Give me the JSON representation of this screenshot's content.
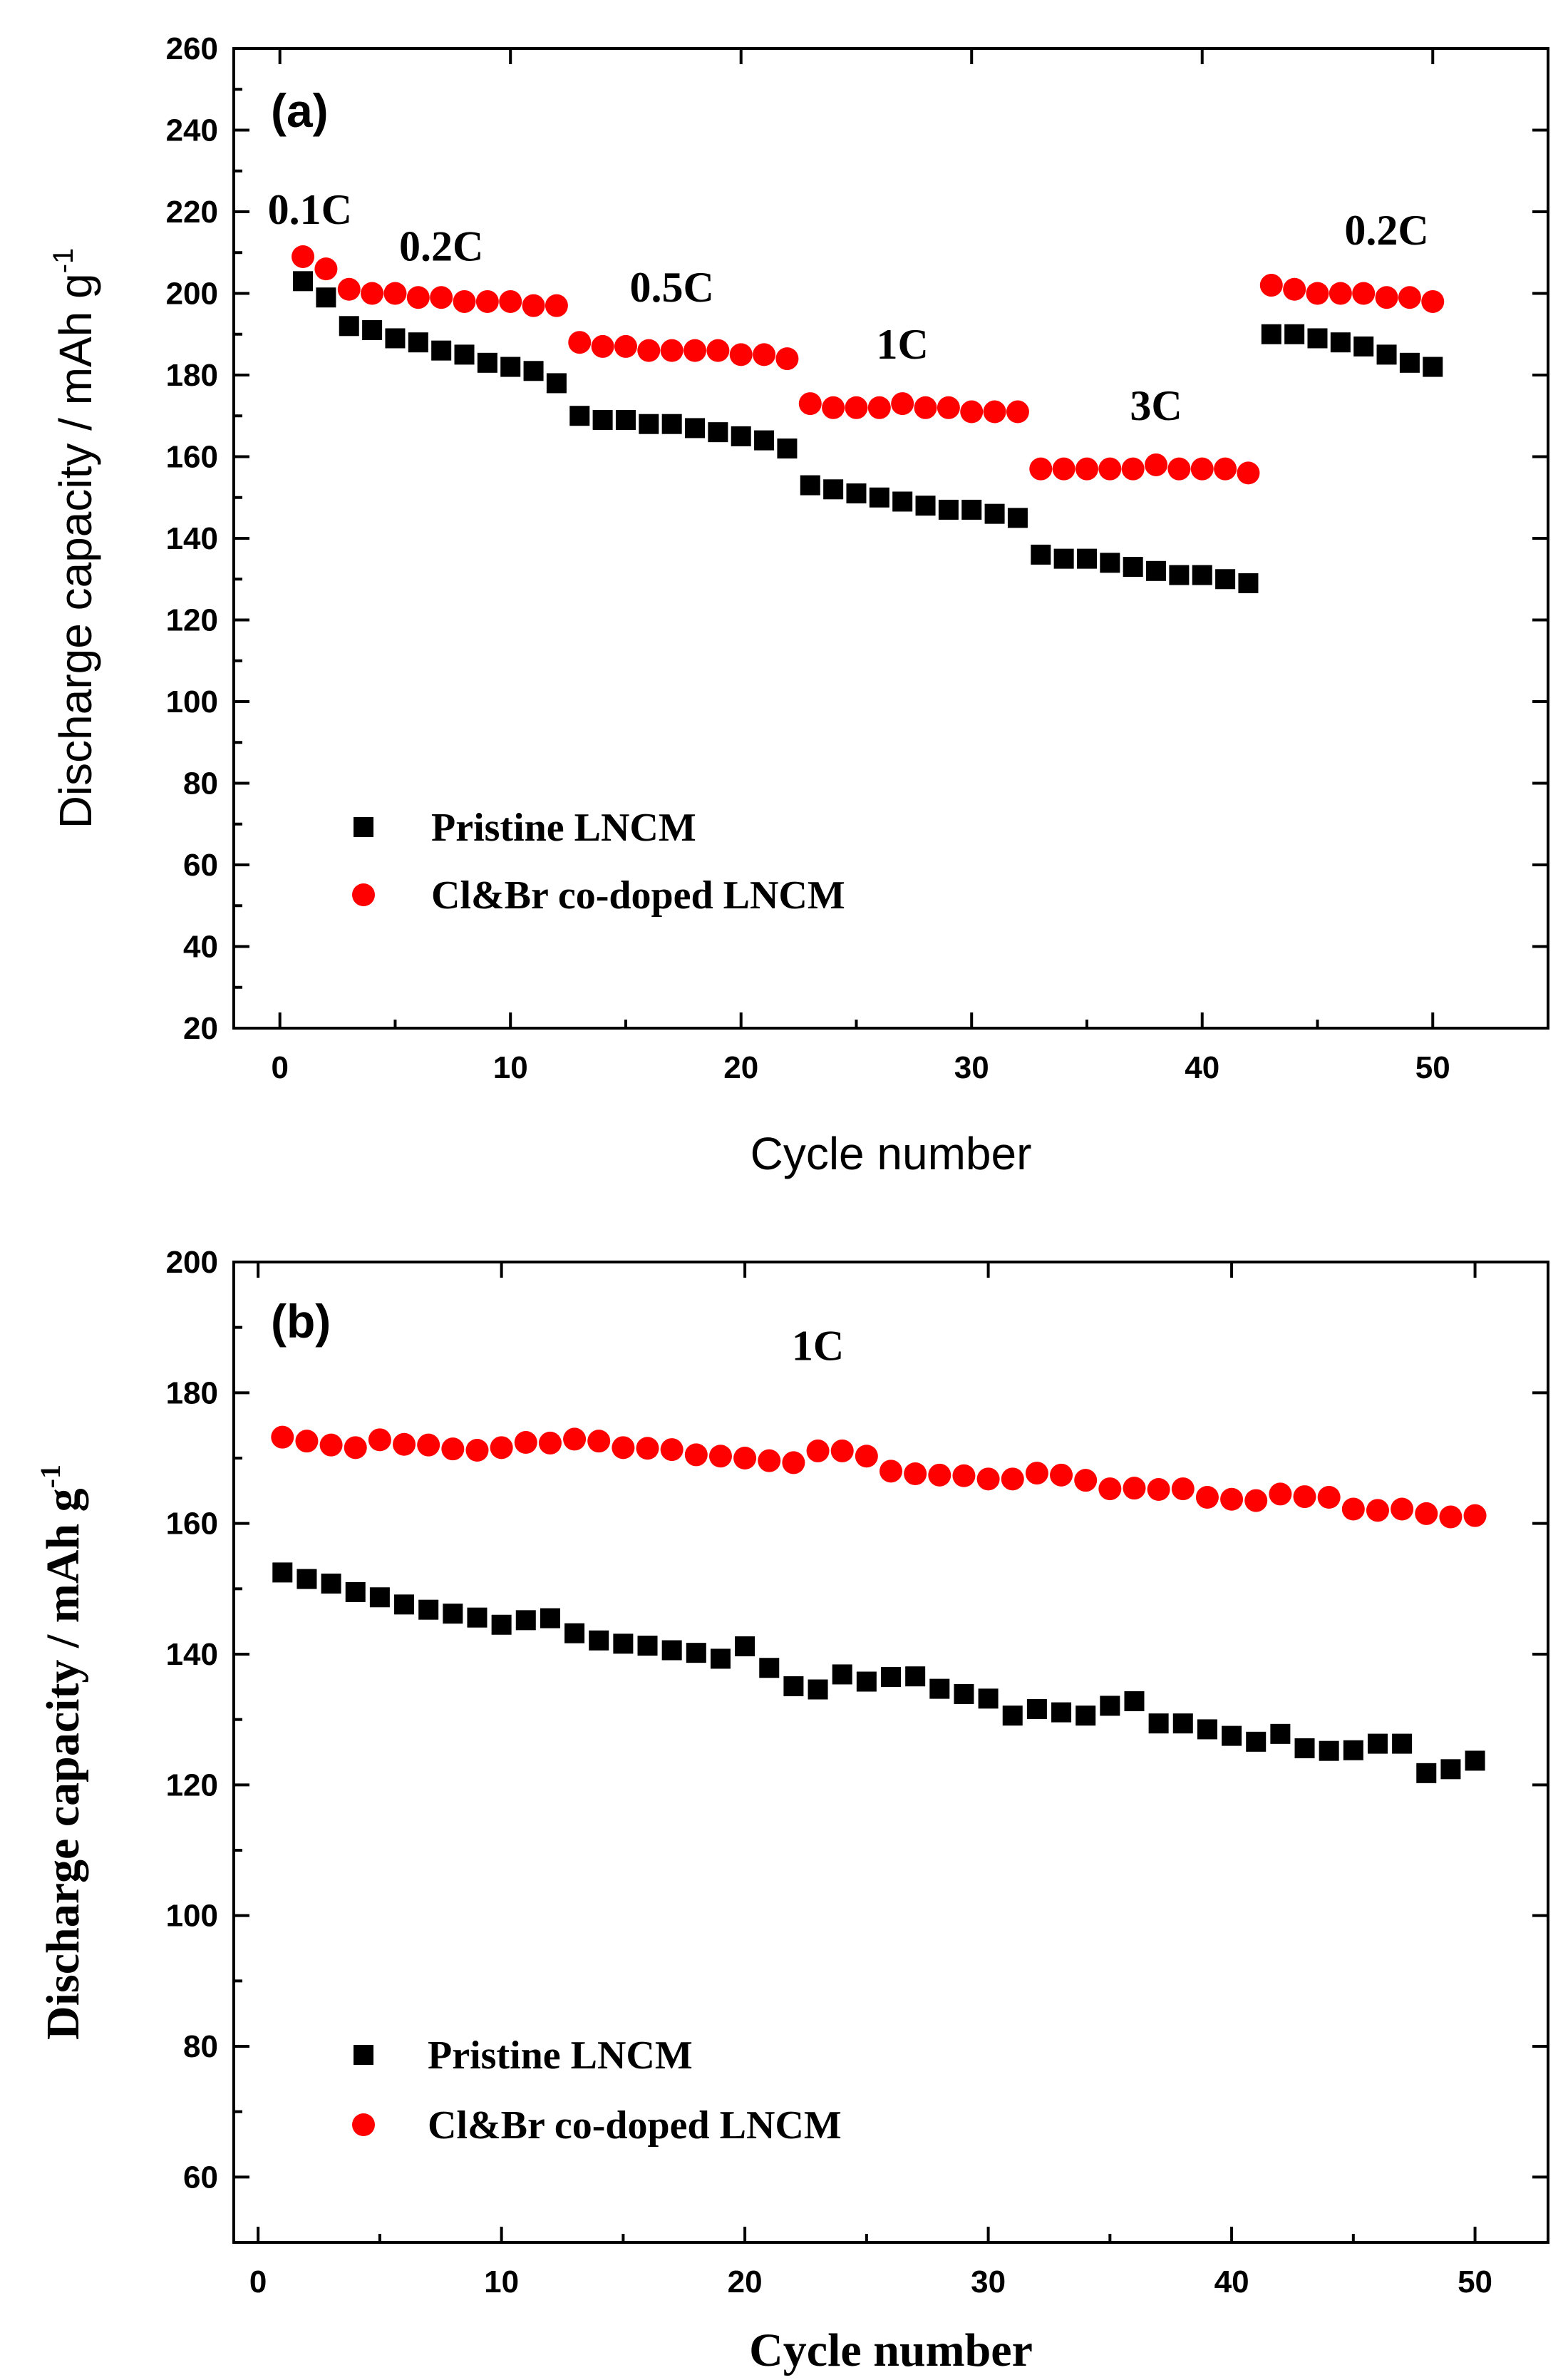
{
  "chart_data": [
    {
      "panel": "(a)",
      "type": "scatter",
      "xlabel": "Cycle  number",
      "ylabel": "Discharge capacity / mAh g-1",
      "ylabel_main": "Discharge capacity / mAh g",
      "ylabel_sup": "-1",
      "xlim": [
        -2,
        55
      ],
      "ylim": [
        20,
        260
      ],
      "xticks": [
        0,
        10,
        20,
        30,
        40,
        50
      ],
      "yticks": [
        20,
        40,
        60,
        80,
        100,
        120,
        140,
        160,
        180,
        200,
        220,
        240,
        260
      ],
      "annotations": [
        {
          "text": "0.1C",
          "x": 1.3,
          "y": 217
        },
        {
          "text": "0.2C",
          "x": 7,
          "y": 208
        },
        {
          "text": "0.5C",
          "x": 17,
          "y": 198
        },
        {
          "text": "1C",
          "x": 27,
          "y": 184
        },
        {
          "text": "3C",
          "x": 38,
          "y": 169
        },
        {
          "text": "0.2C",
          "x": 48,
          "y": 212
        }
      ],
      "series": [
        {
          "name": "Pristine LNCM",
          "marker": "square",
          "color": "#000000",
          "x": [
            1,
            2,
            3,
            4,
            5,
            6,
            7,
            8,
            9,
            10,
            11,
            12,
            13,
            14,
            15,
            16,
            17,
            18,
            19,
            20,
            21,
            22,
            23,
            24,
            25,
            26,
            27,
            28,
            29,
            30,
            31,
            32,
            33,
            34,
            35,
            36,
            37,
            38,
            39,
            40,
            41,
            42,
            43,
            44,
            45,
            46,
            47,
            48,
            49,
            50
          ],
          "y": [
            203,
            199,
            192,
            191,
            189,
            188,
            186,
            185,
            183,
            182,
            181,
            178,
            170,
            169,
            169,
            168,
            168,
            167,
            166,
            165,
            164,
            162,
            153,
            152,
            151,
            150,
            149,
            148,
            147,
            147,
            146,
            145,
            136,
            135,
            135,
            134,
            133,
            132,
            131,
            131,
            130,
            129,
            190,
            190,
            189,
            188,
            187,
            185,
            183,
            182
          ]
        },
        {
          "name": "Cl&Br co-doped LNCM",
          "marker": "circle",
          "color": "#ff0000",
          "x": [
            1,
            2,
            3,
            4,
            5,
            6,
            7,
            8,
            9,
            10,
            11,
            12,
            13,
            14,
            15,
            16,
            17,
            18,
            19,
            20,
            21,
            22,
            23,
            24,
            25,
            26,
            27,
            28,
            29,
            30,
            31,
            32,
            33,
            34,
            35,
            36,
            37,
            38,
            39,
            40,
            41,
            42,
            43,
            44,
            45,
            46,
            47,
            48,
            49,
            50
          ],
          "y": [
            209,
            206,
            201,
            200,
            200,
            199,
            199,
            198,
            198,
            198,
            197,
            197,
            188,
            187,
            187,
            186,
            186,
            186,
            186,
            185,
            185,
            184,
            173,
            172,
            172,
            172,
            173,
            172,
            172,
            171,
            171,
            171,
            157,
            157,
            157,
            157,
            157,
            158,
            157,
            157,
            157,
            156,
            202,
            201,
            200,
            200,
            200,
            199,
            199,
            198
          ]
        }
      ]
    },
    {
      "panel": "(b)",
      "type": "scatter",
      "xlabel": "Cycle  number",
      "ylabel": "Discharge capacity / mAh g-1",
      "ylabel_main": "Discharge capacity / mAh g",
      "ylabel_sup": "-1",
      "xlim": [
        -1,
        53
      ],
      "ylim": [
        50,
        200
      ],
      "xticks": [
        0,
        10,
        20,
        30,
        40,
        50
      ],
      "yticks": [
        60,
        80,
        100,
        120,
        140,
        160,
        180,
        200
      ],
      "annotations": [
        {
          "text": "1C",
          "x": 23,
          "y": 185
        }
      ],
      "series": [
        {
          "name": "Pristine LNCM",
          "marker": "square",
          "color": "#000000",
          "x": [
            1,
            2,
            3,
            4,
            5,
            6,
            7,
            8,
            9,
            10,
            11,
            12,
            13,
            14,
            15,
            16,
            17,
            18,
            19,
            20,
            21,
            22,
            23,
            24,
            25,
            26,
            27,
            28,
            29,
            30,
            31,
            32,
            33,
            34,
            35,
            36,
            37,
            38,
            39,
            40,
            41,
            42,
            43,
            44,
            45,
            46,
            47,
            48,
            49,
            50
          ],
          "y": [
            152.5,
            151.5,
            150.8,
            149.5,
            148.7,
            147.6,
            146.8,
            146.2,
            145.6,
            144.5,
            145.2,
            145.5,
            143.2,
            142.1,
            141.6,
            141.3,
            140.6,
            140.2,
            139.3,
            141.2,
            137.9,
            135.1,
            134.6,
            136.9,
            135.8,
            136.5,
            136.6,
            134.7,
            133.9,
            133.2,
            130.6,
            131.6,
            131.1,
            130.6,
            132.1,
            132.8,
            129.4,
            129.4,
            128.5,
            127.5,
            126.6,
            127.8,
            125.6,
            125.2,
            125.3,
            126.3,
            126.3,
            121.8,
            122.4,
            123.7
          ]
        },
        {
          "name": "Cl&Br co-doped LNCM",
          "marker": "circle",
          "color": "#ff0000",
          "x": [
            1,
            2,
            3,
            4,
            5,
            6,
            7,
            8,
            9,
            10,
            11,
            12,
            13,
            14,
            15,
            16,
            17,
            18,
            19,
            20,
            21,
            22,
            23,
            24,
            25,
            26,
            27,
            28,
            29,
            30,
            31,
            32,
            33,
            34,
            35,
            36,
            37,
            38,
            39,
            40,
            41,
            42,
            43,
            44,
            45,
            46,
            47,
            48,
            49,
            50
          ],
          "y": [
            173.2,
            172.6,
            172,
            171.6,
            172.8,
            172.1,
            172,
            171.4,
            171.2,
            171.6,
            172.4,
            172.3,
            172.9,
            172.6,
            171.6,
            171.5,
            171.3,
            170.5,
            170.3,
            170,
            169.6,
            169.3,
            171.1,
            171.1,
            170.3,
            168,
            167.6,
            167.4,
            167.3,
            166.8,
            166.8,
            167.7,
            167.4,
            166.6,
            165.3,
            165.4,
            165.2,
            165.3,
            164,
            163.7,
            163.5,
            164.5,
            164.1,
            164,
            162.2,
            162,
            162.2,
            161.5,
            161,
            161.2
          ]
        }
      ]
    }
  ]
}
